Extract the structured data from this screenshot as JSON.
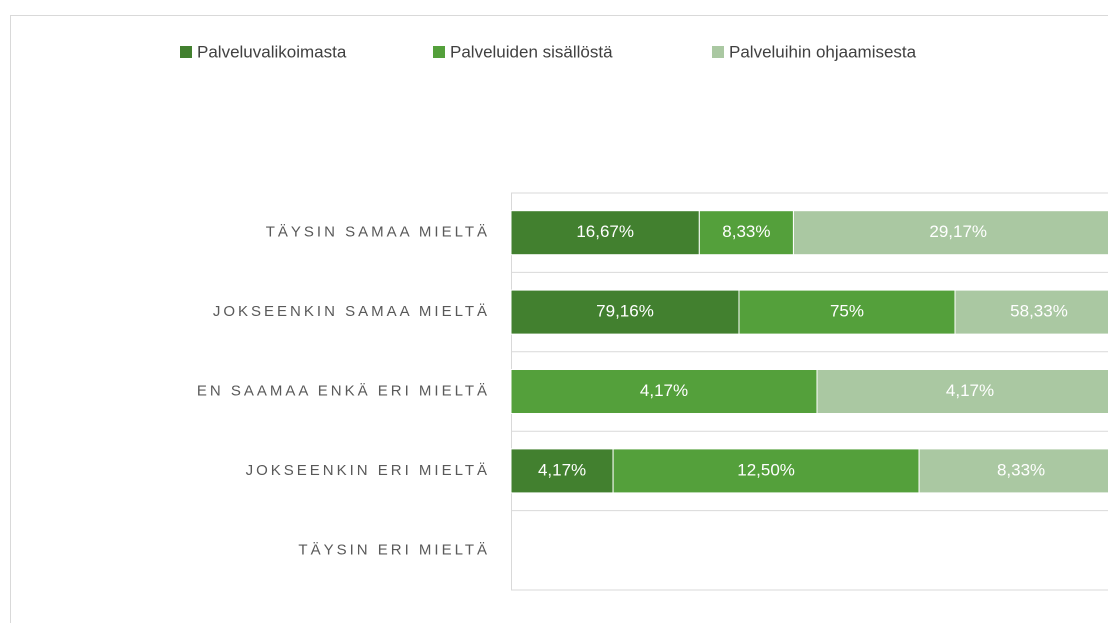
{
  "chart_data": {
    "type": "bar",
    "orientation": "horizontal",
    "stacking": "percent",
    "categories": [
      "TÄYSIN SAMAA MIELTÄ",
      "JOKSEENKIN SAMAA MIELTÄ",
      "EN SAAMAA ENKÄ ERI MIELTÄ",
      "JOKSEENKIN ERI MIELTÄ",
      "TÄYSIN ERI MIELTÄ"
    ],
    "series": [
      {
        "name": "Palveluvalikoimasta",
        "color": "#42802f",
        "values": [
          16.67,
          79.16,
          null,
          4.17,
          null
        ],
        "value_labels": [
          "16,67%",
          "79,16%",
          null,
          "4,17%",
          null
        ]
      },
      {
        "name": "Palveluiden sisällöstä",
        "color": "#54a03b",
        "values": [
          8.33,
          75,
          4.17,
          12.5,
          null
        ],
        "value_labels": [
          "8,33%",
          "75%",
          "4,17%",
          "12,50%",
          null
        ]
      },
      {
        "name": "Palveluihin ohjaamisesta",
        "color": "#aac8a2",
        "values": [
          29.17,
          58.33,
          4.17,
          8.33,
          null
        ],
        "value_labels": [
          "29,17%",
          "58,33%",
          "4,17%",
          "8,33%",
          null
        ]
      }
    ],
    "legend": "top"
  }
}
